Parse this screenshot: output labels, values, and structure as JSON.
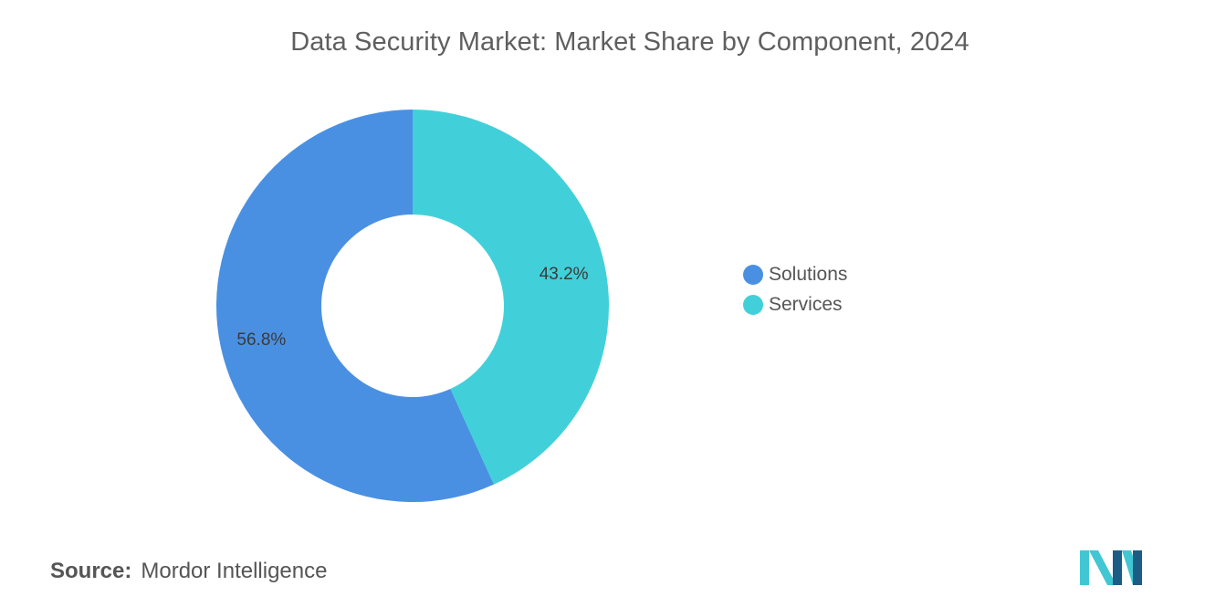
{
  "chart_data": {
    "type": "pie",
    "title": "Data Security Market: Market Share by Component, 2024",
    "series": [
      {
        "name": "Solutions",
        "value": 56.8,
        "label": "56.8%",
        "color": "#4a90e2"
      },
      {
        "name": "Services",
        "value": 43.2,
        "label": "43.2%",
        "color": "#41d0da"
      }
    ],
    "legend": "right",
    "donut": true
  },
  "source": {
    "label": "Source:",
    "text": "Mordor Intelligence"
  },
  "logo": {
    "icon": "mordor-intelligence-logo-icon",
    "colors": [
      "#1c5d86",
      "#41c7d3"
    ]
  }
}
